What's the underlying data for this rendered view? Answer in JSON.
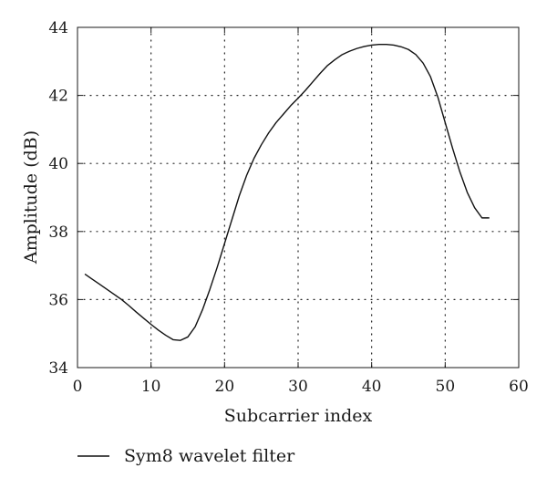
{
  "chart_data": {
    "type": "line",
    "xlabel": "Subcarrier index",
    "ylabel": "Amplitude (dB)",
    "xlim": [
      0,
      60
    ],
    "ylim": [
      34,
      44
    ],
    "xticks": [
      0,
      10,
      20,
      30,
      40,
      50,
      60
    ],
    "yticks": [
      34,
      36,
      38,
      40,
      42,
      44
    ],
    "grid": true,
    "legend_position": "bottom-left, below plot",
    "series": [
      {
        "name": "Sym8 wavelet filter",
        "color": "#111111",
        "x": [
          1,
          2,
          3,
          4,
          5,
          6,
          7,
          8,
          9,
          10,
          11,
          12,
          13,
          14,
          15,
          16,
          17,
          18,
          19,
          20,
          21,
          22,
          23,
          24,
          25,
          26,
          27,
          28,
          29,
          30,
          31,
          32,
          33,
          34,
          35,
          36,
          37,
          38,
          39,
          40,
          41,
          42,
          43,
          44,
          45,
          46,
          47,
          48,
          49,
          50,
          51,
          52,
          53,
          54,
          55,
          56
        ],
        "values": [
          36.75,
          36.6,
          36.45,
          36.3,
          36.15,
          36.0,
          35.82,
          35.63,
          35.45,
          35.27,
          35.1,
          34.95,
          34.82,
          34.8,
          34.9,
          35.2,
          35.7,
          36.3,
          36.95,
          37.65,
          38.35,
          39.05,
          39.65,
          40.15,
          40.55,
          40.9,
          41.2,
          41.45,
          41.7,
          41.92,
          42.15,
          42.4,
          42.65,
          42.88,
          43.05,
          43.2,
          43.3,
          43.38,
          43.44,
          43.48,
          43.5,
          43.5,
          43.48,
          43.43,
          43.35,
          43.2,
          42.95,
          42.55,
          41.95,
          41.2,
          40.45,
          39.75,
          39.15,
          38.7,
          38.4,
          38.4
        ]
      }
    ]
  }
}
